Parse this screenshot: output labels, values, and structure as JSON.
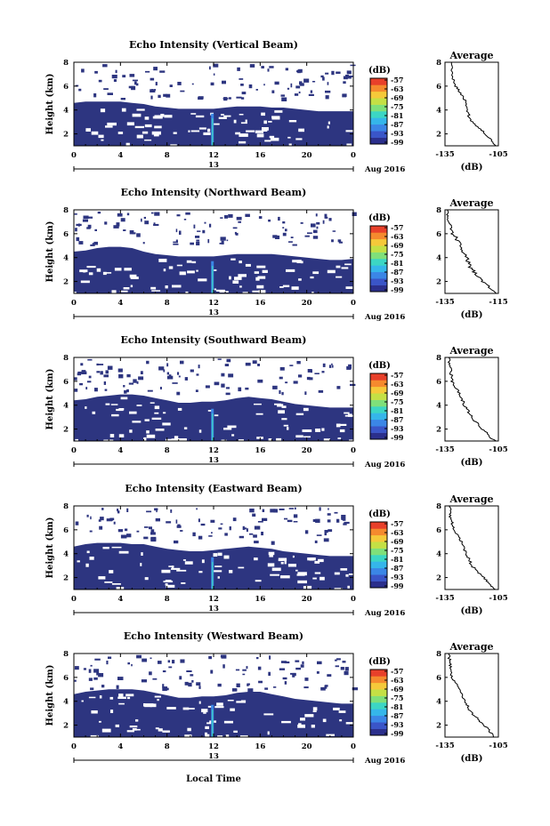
{
  "figure": {
    "xlabel": "Local Time",
    "date_label": "Aug 2016",
    "date_tick": "13",
    "ylabel": "Height (km)",
    "colorbar_unit": "(dB)",
    "avg_title": "Average",
    "avg_xlabel": "(dB)"
  },
  "colors": {
    "background_echo": "#2d3580",
    "colormap": [
      "#2b2f8c",
      "#3a55c8",
      "#3b86e6",
      "#35b6ea",
      "#3cd6c4",
      "#7fe07a",
      "#c4e045",
      "#f5c93a",
      "#f58a2e",
      "#e8402a"
    ]
  },
  "chart_data": [
    {
      "type": "heatmap",
      "title": "Echo Intensity (Vertical Beam)",
      "x_ticks": [
        "0",
        "4",
        "8",
        "12",
        "16",
        "20",
        "0"
      ],
      "xlim": [
        0,
        24
      ],
      "y_ticks": [
        "2",
        "4",
        "6",
        "8"
      ],
      "ylim": [
        1,
        8
      ],
      "colorbar_ticks": [
        "-57",
        "-63",
        "-69",
        "-75",
        "-81",
        "-87",
        "-93",
        "-99"
      ],
      "echo_top_km": [
        4.6,
        4.7,
        4.7,
        4.7,
        4.7,
        4.6,
        4.5,
        4.3,
        4.2,
        4.1,
        4.1,
        4.1,
        4.1,
        4.2,
        4.3,
        4.3,
        4.3,
        4.2,
        4.2,
        4.1,
        4.0,
        3.9,
        3.9,
        3.9,
        3.9
      ],
      "average": {
        "xlim": [
          -135,
          -105
        ],
        "x_ticks": [
          "-135",
          "-105"
        ],
        "y_ticks": [
          "2",
          "4",
          "6",
          "8"
        ],
        "heights_km": [
          1,
          2,
          3,
          4,
          5,
          6,
          7,
          8
        ],
        "values_db": [
          -107,
          -112,
          -120,
          -123,
          -124,
          -129,
          -131,
          -131
        ]
      }
    },
    {
      "type": "heatmap",
      "title": "Echo Intensity (Northward Beam)",
      "x_ticks": [
        "0",
        "4",
        "8",
        "12",
        "16",
        "20",
        "0"
      ],
      "xlim": [
        0,
        24
      ],
      "y_ticks": [
        "2",
        "4",
        "6",
        "8"
      ],
      "ylim": [
        1,
        8
      ],
      "colorbar_ticks": [
        "-57",
        "-63",
        "-69",
        "-75",
        "-81",
        "-87",
        "-93",
        "-99"
      ],
      "echo_top_km": [
        4.5,
        4.6,
        4.8,
        4.9,
        4.9,
        4.8,
        4.5,
        4.3,
        4.2,
        4.1,
        4.1,
        4.1,
        4.1,
        4.2,
        4.3,
        4.3,
        4.3,
        4.3,
        4.2,
        4.1,
        4.0,
        3.9,
        3.8,
        3.8,
        3.9
      ],
      "average": {
        "xlim": [
          -135,
          -115
        ],
        "x_ticks": [
          "-135",
          "-115"
        ],
        "y_ticks": [
          "2",
          "4",
          "6",
          "8"
        ],
        "heights_km": [
          1,
          2,
          3,
          4,
          5,
          6,
          7,
          8
        ],
        "values_db": [
          -116,
          -121,
          -125,
          -127,
          -129,
          -132,
          -134,
          -134
        ]
      }
    },
    {
      "type": "heatmap",
      "title": "Echo Intensity (Southward Beam)",
      "x_ticks": [
        "0",
        "4",
        "8",
        "12",
        "16",
        "20",
        "0"
      ],
      "xlim": [
        0,
        24
      ],
      "y_ticks": [
        "2",
        "4",
        "6",
        "8"
      ],
      "ylim": [
        1,
        8
      ],
      "colorbar_ticks": [
        "-57",
        "-63",
        "-69",
        "-75",
        "-81",
        "-87",
        "-93",
        "-99"
      ],
      "echo_top_km": [
        4.4,
        4.5,
        4.7,
        4.8,
        4.9,
        4.9,
        4.8,
        4.6,
        4.4,
        4.2,
        4.2,
        4.3,
        4.3,
        4.4,
        4.6,
        4.7,
        4.6,
        4.5,
        4.3,
        4.1,
        4.0,
        3.9,
        3.8,
        3.8,
        3.8
      ],
      "average": {
        "xlim": [
          -135,
          -105
        ],
        "x_ticks": [
          "-135",
          "-105"
        ],
        "y_ticks": [
          "2",
          "4",
          "6",
          "8"
        ],
        "heights_km": [
          1,
          2,
          3,
          4,
          5,
          6,
          7,
          8
        ],
        "values_db": [
          -107,
          -114,
          -120,
          -124,
          -127,
          -131,
          -132,
          -133
        ]
      }
    },
    {
      "type": "heatmap",
      "title": "Echo Intensity (Eastward Beam)",
      "x_ticks": [
        "0",
        "4",
        "8",
        "12",
        "16",
        "20",
        "0"
      ],
      "xlim": [
        0,
        24
      ],
      "y_ticks": [
        "2",
        "4",
        "6",
        "8"
      ],
      "ylim": [
        1,
        8
      ],
      "colorbar_ticks": [
        "-57",
        "-63",
        "-69",
        "-75",
        "-81",
        "-87",
        "-93",
        "-99"
      ],
      "echo_top_km": [
        4.6,
        4.8,
        4.9,
        4.9,
        4.9,
        4.8,
        4.8,
        4.6,
        4.4,
        4.3,
        4.2,
        4.2,
        4.3,
        4.4,
        4.5,
        4.6,
        4.5,
        4.4,
        4.2,
        4.1,
        4.0,
        3.9,
        3.8,
        3.8,
        3.8
      ],
      "average": {
        "xlim": [
          -135,
          -105
        ],
        "x_ticks": [
          "-135",
          "-105"
        ],
        "y_ticks": [
          "2",
          "4",
          "6",
          "8"
        ],
        "heights_km": [
          1,
          2,
          3,
          4,
          5,
          6,
          7,
          8
        ],
        "values_db": [
          -107,
          -113,
          -120,
          -123,
          -126,
          -130,
          -132,
          -132
        ]
      }
    },
    {
      "type": "heatmap",
      "title": "Echo Intensity (Westward Beam)",
      "x_ticks": [
        "0",
        "4",
        "8",
        "12",
        "16",
        "20",
        "0"
      ],
      "xlim": [
        0,
        24
      ],
      "y_ticks": [
        "2",
        "4",
        "6",
        "8"
      ],
      "ylim": [
        1,
        8
      ],
      "colorbar_ticks": [
        "-57",
        "-63",
        "-69",
        "-75",
        "-81",
        "-87",
        "-93",
        "-99"
      ],
      "echo_top_km": [
        4.6,
        4.8,
        4.9,
        5.0,
        5.0,
        5.0,
        4.9,
        4.7,
        4.5,
        4.3,
        4.3,
        4.4,
        4.4,
        4.5,
        4.7,
        4.8,
        4.8,
        4.6,
        4.4,
        4.2,
        4.1,
        4.0,
        3.9,
        3.8,
        3.8
      ],
      "average": {
        "xlim": [
          -135,
          -105
        ],
        "x_ticks": [
          "-135",
          "-105"
        ],
        "y_ticks": [
          "2",
          "4",
          "6",
          "8"
        ],
        "heights_km": [
          1,
          2,
          3,
          4,
          5,
          6,
          7,
          8
        ],
        "values_db": [
          -107,
          -113,
          -120,
          -124,
          -127,
          -131,
          -132,
          -133
        ]
      }
    }
  ]
}
